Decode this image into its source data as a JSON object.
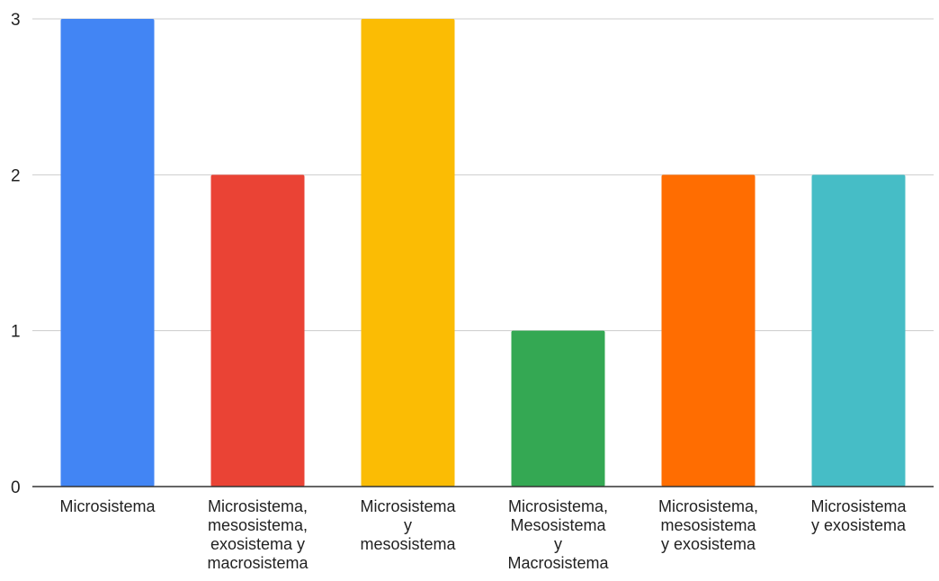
{
  "chart_data": {
    "type": "bar",
    "title": "",
    "xlabel": "",
    "ylabel": "",
    "ylim": [
      0,
      3
    ],
    "yticks": [
      "0",
      "1",
      "2",
      "3"
    ],
    "grid": true,
    "legend": "none",
    "categories": [
      [
        "Microsistema"
      ],
      [
        "Microsistema,",
        "mesosistema,",
        "exosistema y",
        "macrosistema"
      ],
      [
        "Microsistema",
        "y",
        "mesosistema"
      ],
      [
        "Microsistema,",
        "Mesosistema",
        "y",
        "Macrosistema"
      ],
      [
        "Microsistema,",
        "mesosistema",
        "y exosistema"
      ],
      [
        "Microsistema",
        "y exosistema"
      ]
    ],
    "values": [
      3,
      2,
      3,
      1,
      2,
      2
    ],
    "colors": [
      "#4285f4",
      "#ea4335",
      "#fbbc04",
      "#34a853",
      "#ff6d01",
      "#46bdc6"
    ],
    "gridline_color": "#cccccc",
    "axis_color": "#333333"
  }
}
